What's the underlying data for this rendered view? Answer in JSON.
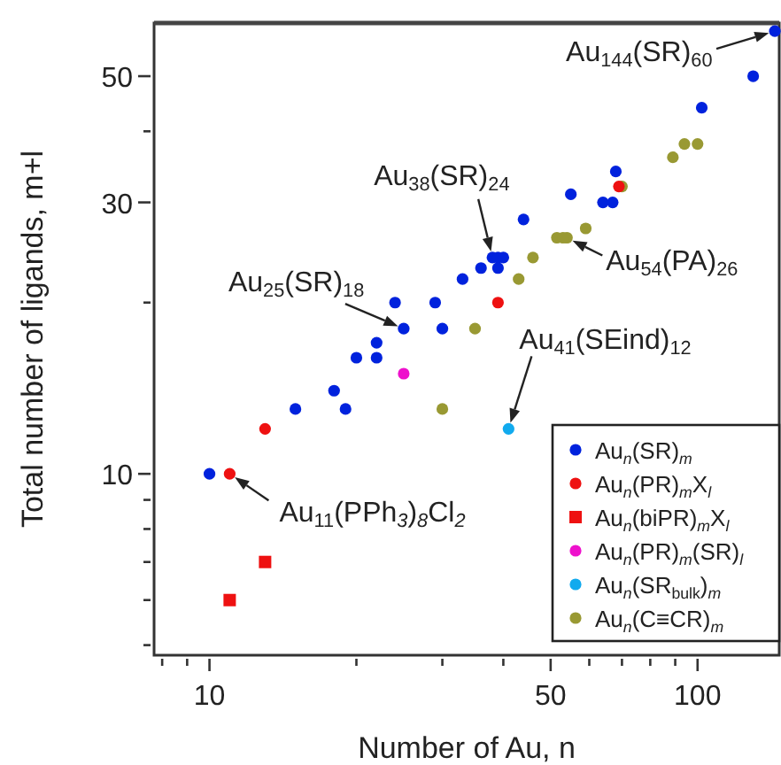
{
  "chart_data": {
    "type": "scatter",
    "xlabel": "Number of Au, n",
    "ylabel": "Total number of ligands, m+l",
    "log": "xy",
    "grid": false,
    "legend": "bottom right",
    "xlim": [
      7.7,
      147
    ],
    "ylim": [
      4.8,
      62
    ],
    "xticks": [
      {
        "value": 8,
        "label": null
      },
      {
        "value": 9,
        "label": null
      },
      10,
      {
        "value": 20,
        "label": null
      },
      {
        "value": 30,
        "label": null
      },
      {
        "value": 40,
        "label": null
      },
      50,
      {
        "value": 60,
        "label": null
      },
      {
        "value": 70,
        "label": null
      },
      {
        "value": 80,
        "label": null
      },
      {
        "value": 90,
        "label": null
      },
      100
    ],
    "yticks": [
      {
        "value": 5,
        "label": null
      },
      {
        "value": 6,
        "label": null
      },
      {
        "value": 7,
        "label": null
      },
      {
        "value": 8,
        "label": null
      },
      {
        "value": 9,
        "label": null
      },
      10,
      {
        "value": 20,
        "label": null
      },
      30,
      {
        "value": 40,
        "label": null
      },
      50
    ],
    "series": [
      {
        "name": "Au$_{n}$(SR)$_{m}$",
        "color": "#0022dd",
        "marker": "circle",
        "x": [
          10,
          15,
          18,
          19,
          20,
          22,
          22,
          24,
          25,
          29,
          30,
          33,
          36,
          38,
          39,
          40,
          39,
          44,
          55,
          64,
          67,
          68,
          102,
          130,
          144
        ],
        "values": [
          10,
          13,
          14,
          13,
          16,
          16,
          17,
          20,
          18,
          20,
          18,
          22,
          23,
          24,
          24,
          24,
          23,
          28,
          31,
          30,
          30,
          34,
          44,
          50,
          60
        ]
      },
      {
        "name": "Au$_{n}$(PR)$_{m}$X$_{l}$",
        "color": "#ee1111",
        "marker": "circle",
        "x": [
          11,
          13,
          39,
          69
        ],
        "values": [
          10,
          12,
          20,
          32
        ]
      },
      {
        "name": "Au$_{n}$(biPR)$_{m}$X$_{l}$",
        "color": "#ee1111",
        "marker": "square",
        "x": [
          11,
          13
        ],
        "values": [
          6,
          7
        ]
      },
      {
        "name": "Au$_{n}$(PR)$_{m}$(SR)$_{l}$",
        "color": "#ee11cc",
        "marker": "circle",
        "x": [
          25
        ],
        "values": [
          15
        ]
      },
      {
        "name": "Au$_{n}$(SR$_{bulk}$)$_{m}$",
        "color": "#11aaee",
        "marker": "circle",
        "x": [
          41
        ],
        "values": [
          12
        ]
      },
      {
        "name": "Au$_{n}$(C≡CR)$_{m}$",
        "color": "#999933",
        "marker": "circle",
        "x": [
          30,
          35,
          43,
          46,
          51.5,
          54,
          53,
          59,
          70,
          89,
          94,
          100
        ],
        "values": [
          13,
          18,
          22,
          24,
          26,
          26,
          26,
          27,
          32,
          36,
          38,
          38
        ]
      }
    ],
    "annotations": [
      {
        "text": "Au$_{144}$(SR)$_{60}$",
        "x": 144,
        "y": 60
      },
      {
        "text": "Au$_{38}$(SR)$_{24}$",
        "x": 38,
        "y": 24
      },
      {
        "text": "Au$_{54}$(PA)$_{26}$",
        "x": 54,
        "y": 26
      },
      {
        "text": "Au$_{25}$(SR)$_{18}$",
        "x": 25,
        "y": 18
      },
      {
        "text": "Au$_{41}$(SEind)$_{12}$",
        "x": 41,
        "y": 12
      },
      {
        "text": "Au$_{11}$(PPh$_{3}$)$_{8}$Cl$_{2}$",
        "x": 11,
        "y": 10
      }
    ]
  }
}
